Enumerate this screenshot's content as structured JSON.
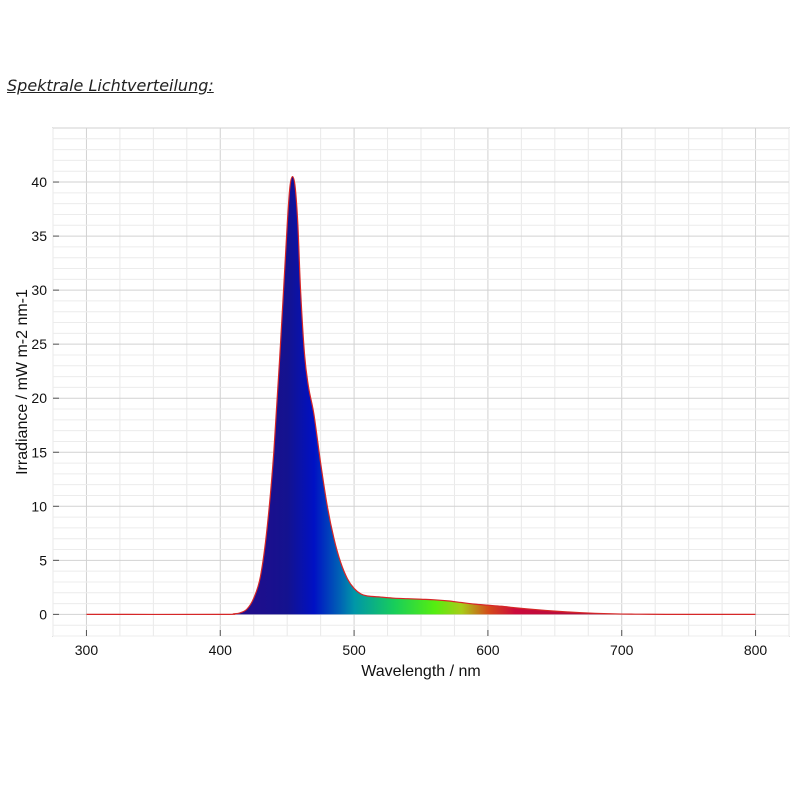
{
  "heading": "Spektrale Lichtverteilung:",
  "chart_data": {
    "type": "area",
    "xlabel": "Wavelength / nm",
    "ylabel": "Irradiance / mW m-2 nm-1",
    "xlim": [
      275,
      825
    ],
    "ylim": [
      -2,
      45
    ],
    "xticks": [
      300,
      400,
      500,
      600,
      700,
      800
    ],
    "yticks": [
      0,
      5,
      10,
      15,
      20,
      25,
      30,
      35,
      40
    ],
    "grid": true,
    "line_color": "#d62728",
    "fill": "spectral color gradient under curve",
    "x": [
      300,
      400,
      410,
      415,
      420,
      425,
      430,
      435,
      440,
      445,
      450,
      452,
      454,
      456,
      458,
      460,
      463,
      466,
      470,
      475,
      480,
      485,
      490,
      495,
      500,
      505,
      510,
      520,
      530,
      540,
      550,
      560,
      570,
      580,
      590,
      600,
      610,
      620,
      630,
      640,
      650,
      660,
      670,
      680,
      690,
      700,
      710,
      720,
      740,
      760,
      780,
      800
    ],
    "y": [
      0,
      0,
      0.05,
      0.15,
      0.5,
      1.5,
      3.5,
      8,
      15,
      25,
      36,
      39.5,
      40.5,
      39.5,
      36,
      30,
      24,
      21,
      18.5,
      14,
      10,
      7,
      4.8,
      3.3,
      2.4,
      1.9,
      1.7,
      1.6,
      1.5,
      1.45,
      1.4,
      1.35,
      1.25,
      1.1,
      0.95,
      0.85,
      0.75,
      0.62,
      0.5,
      0.4,
      0.3,
      0.22,
      0.15,
      0.1,
      0.06,
      0.03,
      0.02,
      0.01,
      0,
      0,
      0,
      0
    ]
  }
}
